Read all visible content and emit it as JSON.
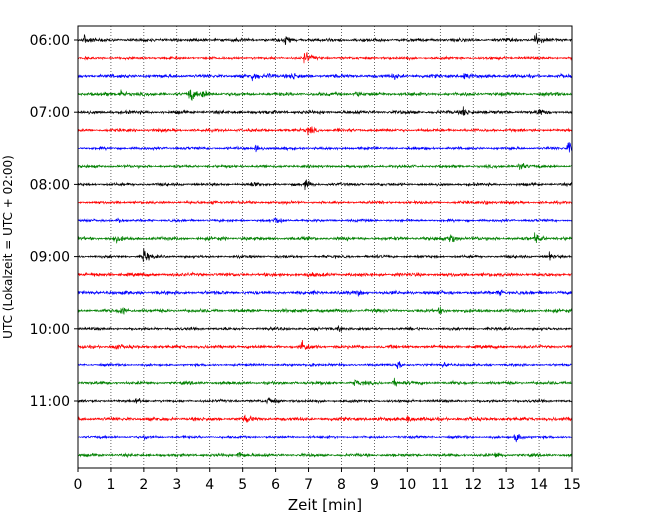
{
  "chart_data": {
    "type": "line",
    "title": "",
    "xlabel": "Zeit  [min]",
    "ylabel": "UTC (Lokalzeit = UTC + 02:00)",
    "xlim": [
      0,
      15
    ],
    "x_ticks": [
      0,
      1,
      2,
      3,
      4,
      5,
      6,
      7,
      8,
      9,
      10,
      11,
      12,
      13,
      14,
      15
    ],
    "y_tick_labels": [
      "06:00",
      "07:00",
      "08:00",
      "09:00",
      "10:00",
      "11:00"
    ],
    "y_tick_rows": [
      0,
      4,
      8,
      12,
      16,
      20
    ],
    "grid": "vertical dotted at each minute",
    "trace_colors": [
      "#000000",
      "#ff0000",
      "#0000ff",
      "#008000"
    ],
    "traces": [
      {
        "start": "06:00",
        "events": [
          [
            0.2,
            1.0
          ],
          [
            6.3,
            0.9
          ],
          [
            13.9,
            1.0
          ]
        ]
      },
      {
        "start": "06:15",
        "events": [
          [
            6.9,
            1.1
          ]
        ]
      },
      {
        "start": "06:30",
        "events": [
          [
            5.3,
            0.6
          ],
          [
            5.8,
            0.5
          ],
          [
            6.5,
            0.5
          ],
          [
            9.6,
            0.4
          ],
          [
            11.7,
            0.6
          ]
        ]
      },
      {
        "start": "06:45",
        "events": [
          [
            1.3,
            0.6
          ],
          [
            3.4,
            1.2
          ],
          [
            3.8,
            0.8
          ],
          [
            8.4,
            0.5
          ]
        ]
      },
      {
        "start": "07:00",
        "events": [
          [
            11.7,
            0.9
          ],
          [
            14.0,
            0.5
          ]
        ]
      },
      {
        "start": "07:15",
        "events": [
          [
            7.0,
            0.9
          ]
        ]
      },
      {
        "start": "07:30",
        "events": [
          [
            5.4,
            0.9
          ],
          [
            14.9,
            1.0
          ]
        ]
      },
      {
        "start": "07:45",
        "events": [
          [
            13.4,
            1.0
          ]
        ]
      },
      {
        "start": "08:00",
        "events": [
          [
            5.3,
            0.4
          ],
          [
            6.9,
            0.7
          ]
        ]
      },
      {
        "start": "08:15",
        "events": [
          [
            4.1,
            0.4
          ],
          [
            12.4,
            0.4
          ]
        ]
      },
      {
        "start": "08:30",
        "events": [
          [
            6.0,
            0.6
          ],
          [
            1.2,
            0.4
          ]
        ]
      },
      {
        "start": "08:45",
        "events": [
          [
            1.1,
            0.6
          ],
          [
            11.3,
            1.1
          ],
          [
            13.9,
            0.9
          ]
        ]
      },
      {
        "start": "09:00",
        "events": [
          [
            2.0,
            1.3
          ],
          [
            14.3,
            0.5
          ]
        ]
      },
      {
        "start": "09:15",
        "events": [
          [
            7.0,
            0.3
          ]
        ]
      },
      {
        "start": "09:30",
        "events": [
          [
            12.8,
            0.4
          ],
          [
            8.5,
            0.3
          ]
        ]
      },
      {
        "start": "09:45",
        "events": [
          [
            1.3,
            0.9
          ],
          [
            11.0,
            0.5
          ]
        ]
      },
      {
        "start": "10:00",
        "events": [
          [
            7.9,
            0.5
          ]
        ]
      },
      {
        "start": "10:15",
        "events": [
          [
            1.1,
            0.6
          ],
          [
            6.8,
            1.1
          ]
        ]
      },
      {
        "start": "10:30",
        "events": [
          [
            7.1,
            0.5
          ],
          [
            9.7,
            0.7
          ],
          [
            11.1,
            0.4
          ]
        ]
      },
      {
        "start": "10:45",
        "events": [
          [
            8.4,
            0.5
          ],
          [
            9.6,
            0.6
          ]
        ]
      },
      {
        "start": "11:00",
        "events": [
          [
            5.8,
            0.8
          ],
          [
            1.8,
            0.4
          ]
        ]
      },
      {
        "start": "11:15",
        "events": [
          [
            5.1,
            0.6
          ],
          [
            10.0,
            0.6
          ]
        ]
      },
      {
        "start": "11:30",
        "events": [
          [
            13.3,
            1.0
          ],
          [
            2.0,
            0.3
          ]
        ]
      },
      {
        "start": "11:45",
        "events": [
          [
            4.9,
            0.8
          ],
          [
            12.7,
            0.5
          ]
        ]
      }
    ]
  }
}
